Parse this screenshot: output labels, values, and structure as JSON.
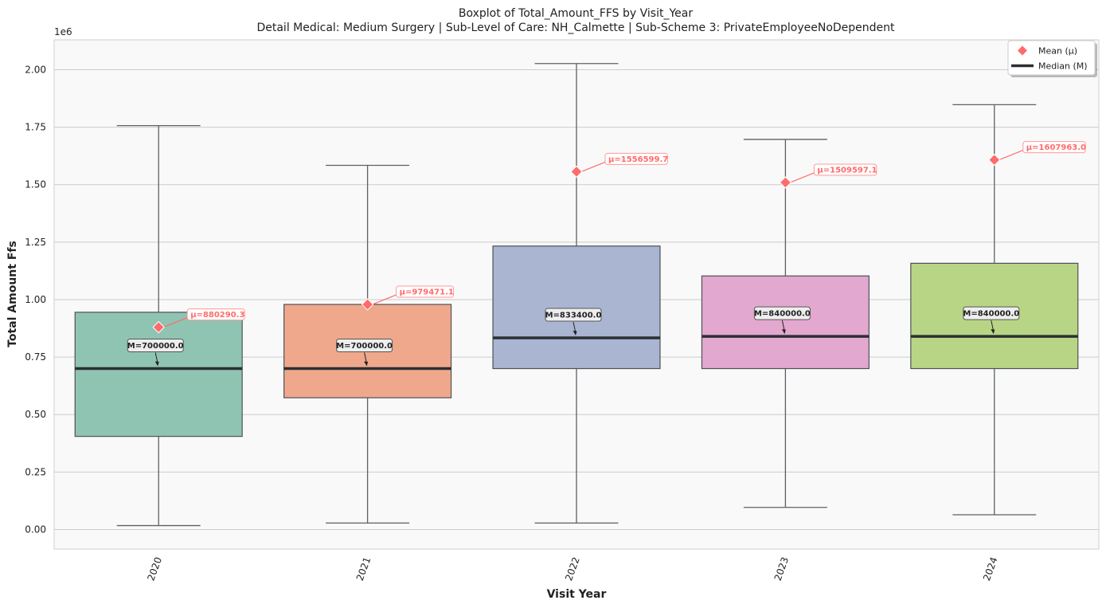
{
  "chart_data": {
    "type": "boxplot",
    "title": "Boxplot of Total_Amount_FFS by Visit_Year",
    "subtitle": "Detail Medical: Medium Surgery | Sub-Level of Care: NH_Calmette | Sub-Scheme 3: PrivateEmployeeNoDependent",
    "xlabel": "Visit Year",
    "ylabel": "Total Amount Ffs",
    "y_offset_label": "1e6",
    "ylim": [
      -0.085,
      2.13
    ],
    "y_ticks": [
      0.0,
      0.25,
      0.5,
      0.75,
      1.0,
      1.25,
      1.5,
      1.75,
      2.0
    ],
    "y_tick_labels": [
      "0.00",
      "0.25",
      "0.50",
      "0.75",
      "1.00",
      "1.25",
      "1.50",
      "1.75",
      "2.00"
    ],
    "grid": true,
    "legend": {
      "position": "top-right",
      "entries": [
        {
          "label": "Mean (μ)",
          "marker": "diamond",
          "color": "#ff6b6b"
        },
        {
          "label": "Median (M)",
          "marker": "line",
          "color": "#2b2f33"
        }
      ]
    },
    "categories": [
      "2020",
      "2021",
      "2022",
      "2023",
      "2024"
    ],
    "boxes": [
      {
        "category": "2020",
        "whisker_low": 0.017,
        "q1": 0.405,
        "median": 0.7,
        "q3": 0.945,
        "whisker_high": 1.757,
        "mean": 0.88,
        "color": "#8fc4b3",
        "median_label": "M=700000.0",
        "mean_label": "μ=880290.3"
      },
      {
        "category": "2021",
        "whisker_low": 0.028,
        "q1": 0.573,
        "median": 0.7,
        "q3": 0.979,
        "whisker_high": 1.584,
        "mean": 0.979,
        "color": "#efa88c",
        "median_label": "M=700000.0",
        "mean_label": "μ=979471.1"
      },
      {
        "category": "2022",
        "whisker_low": 0.028,
        "q1": 0.7,
        "median": 0.8334,
        "q3": 1.233,
        "whisker_high": 2.027,
        "mean": 1.5566,
        "color": "#a9b5d1",
        "median_label": "M=833400.0",
        "mean_label": "μ=1556599.7"
      },
      {
        "category": "2023",
        "whisker_low": 0.096,
        "q1": 0.7,
        "median": 0.84,
        "q3": 1.103,
        "whisker_high": 1.697,
        "mean": 1.5096,
        "color": "#e2a8cf",
        "median_label": "M=840000.0",
        "mean_label": "μ=1509597.1"
      },
      {
        "category": "2024",
        "whisker_low": 0.064,
        "q1": 0.7,
        "median": 0.84,
        "q3": 1.158,
        "whisker_high": 1.848,
        "mean": 1.608,
        "color": "#b8d585",
        "median_label": "M=840000.0",
        "mean_label": "μ=1607963.0"
      }
    ]
  }
}
